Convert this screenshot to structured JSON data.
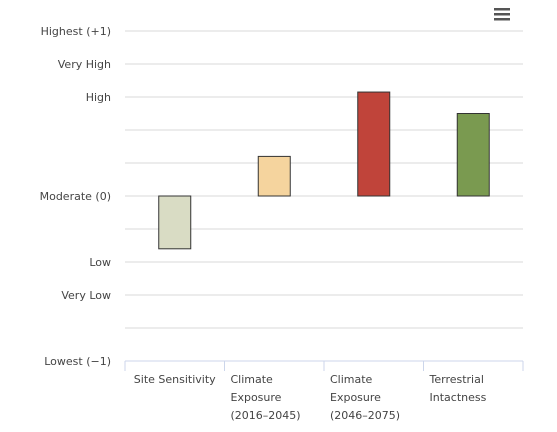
{
  "chart_data": {
    "type": "bar",
    "categories": [
      [
        "Site Sensitivity"
      ],
      [
        "Climate",
        "Exposure",
        "(2016–2045)"
      ],
      [
        "Climate",
        "Exposure",
        "(2046–2075)"
      ],
      [
        "Terrestrial",
        "Intactness"
      ]
    ],
    "series": [
      {
        "values": [
          -0.32,
          0.24,
          0.63,
          0.5
        ],
        "colors": [
          "#d9dcc4",
          "#f5d49e",
          "#c0443a",
          "#7a9a50"
        ]
      }
    ],
    "ylim": [
      -1,
      1
    ],
    "ytick_values": [
      1,
      0.8,
      0.6,
      0.4,
      0.2,
      0,
      -0.2,
      -0.4,
      -0.6,
      -0.8,
      -1
    ],
    "ytick_labels": [
      "Highest (+1)",
      "Very High",
      "High",
      "",
      "",
      "Moderate (0)",
      "",
      "Low",
      "Very Low",
      "",
      "Lowest (−1)"
    ],
    "grid": true,
    "legend": "none"
  },
  "menu_icon": "hamburger-menu-icon"
}
